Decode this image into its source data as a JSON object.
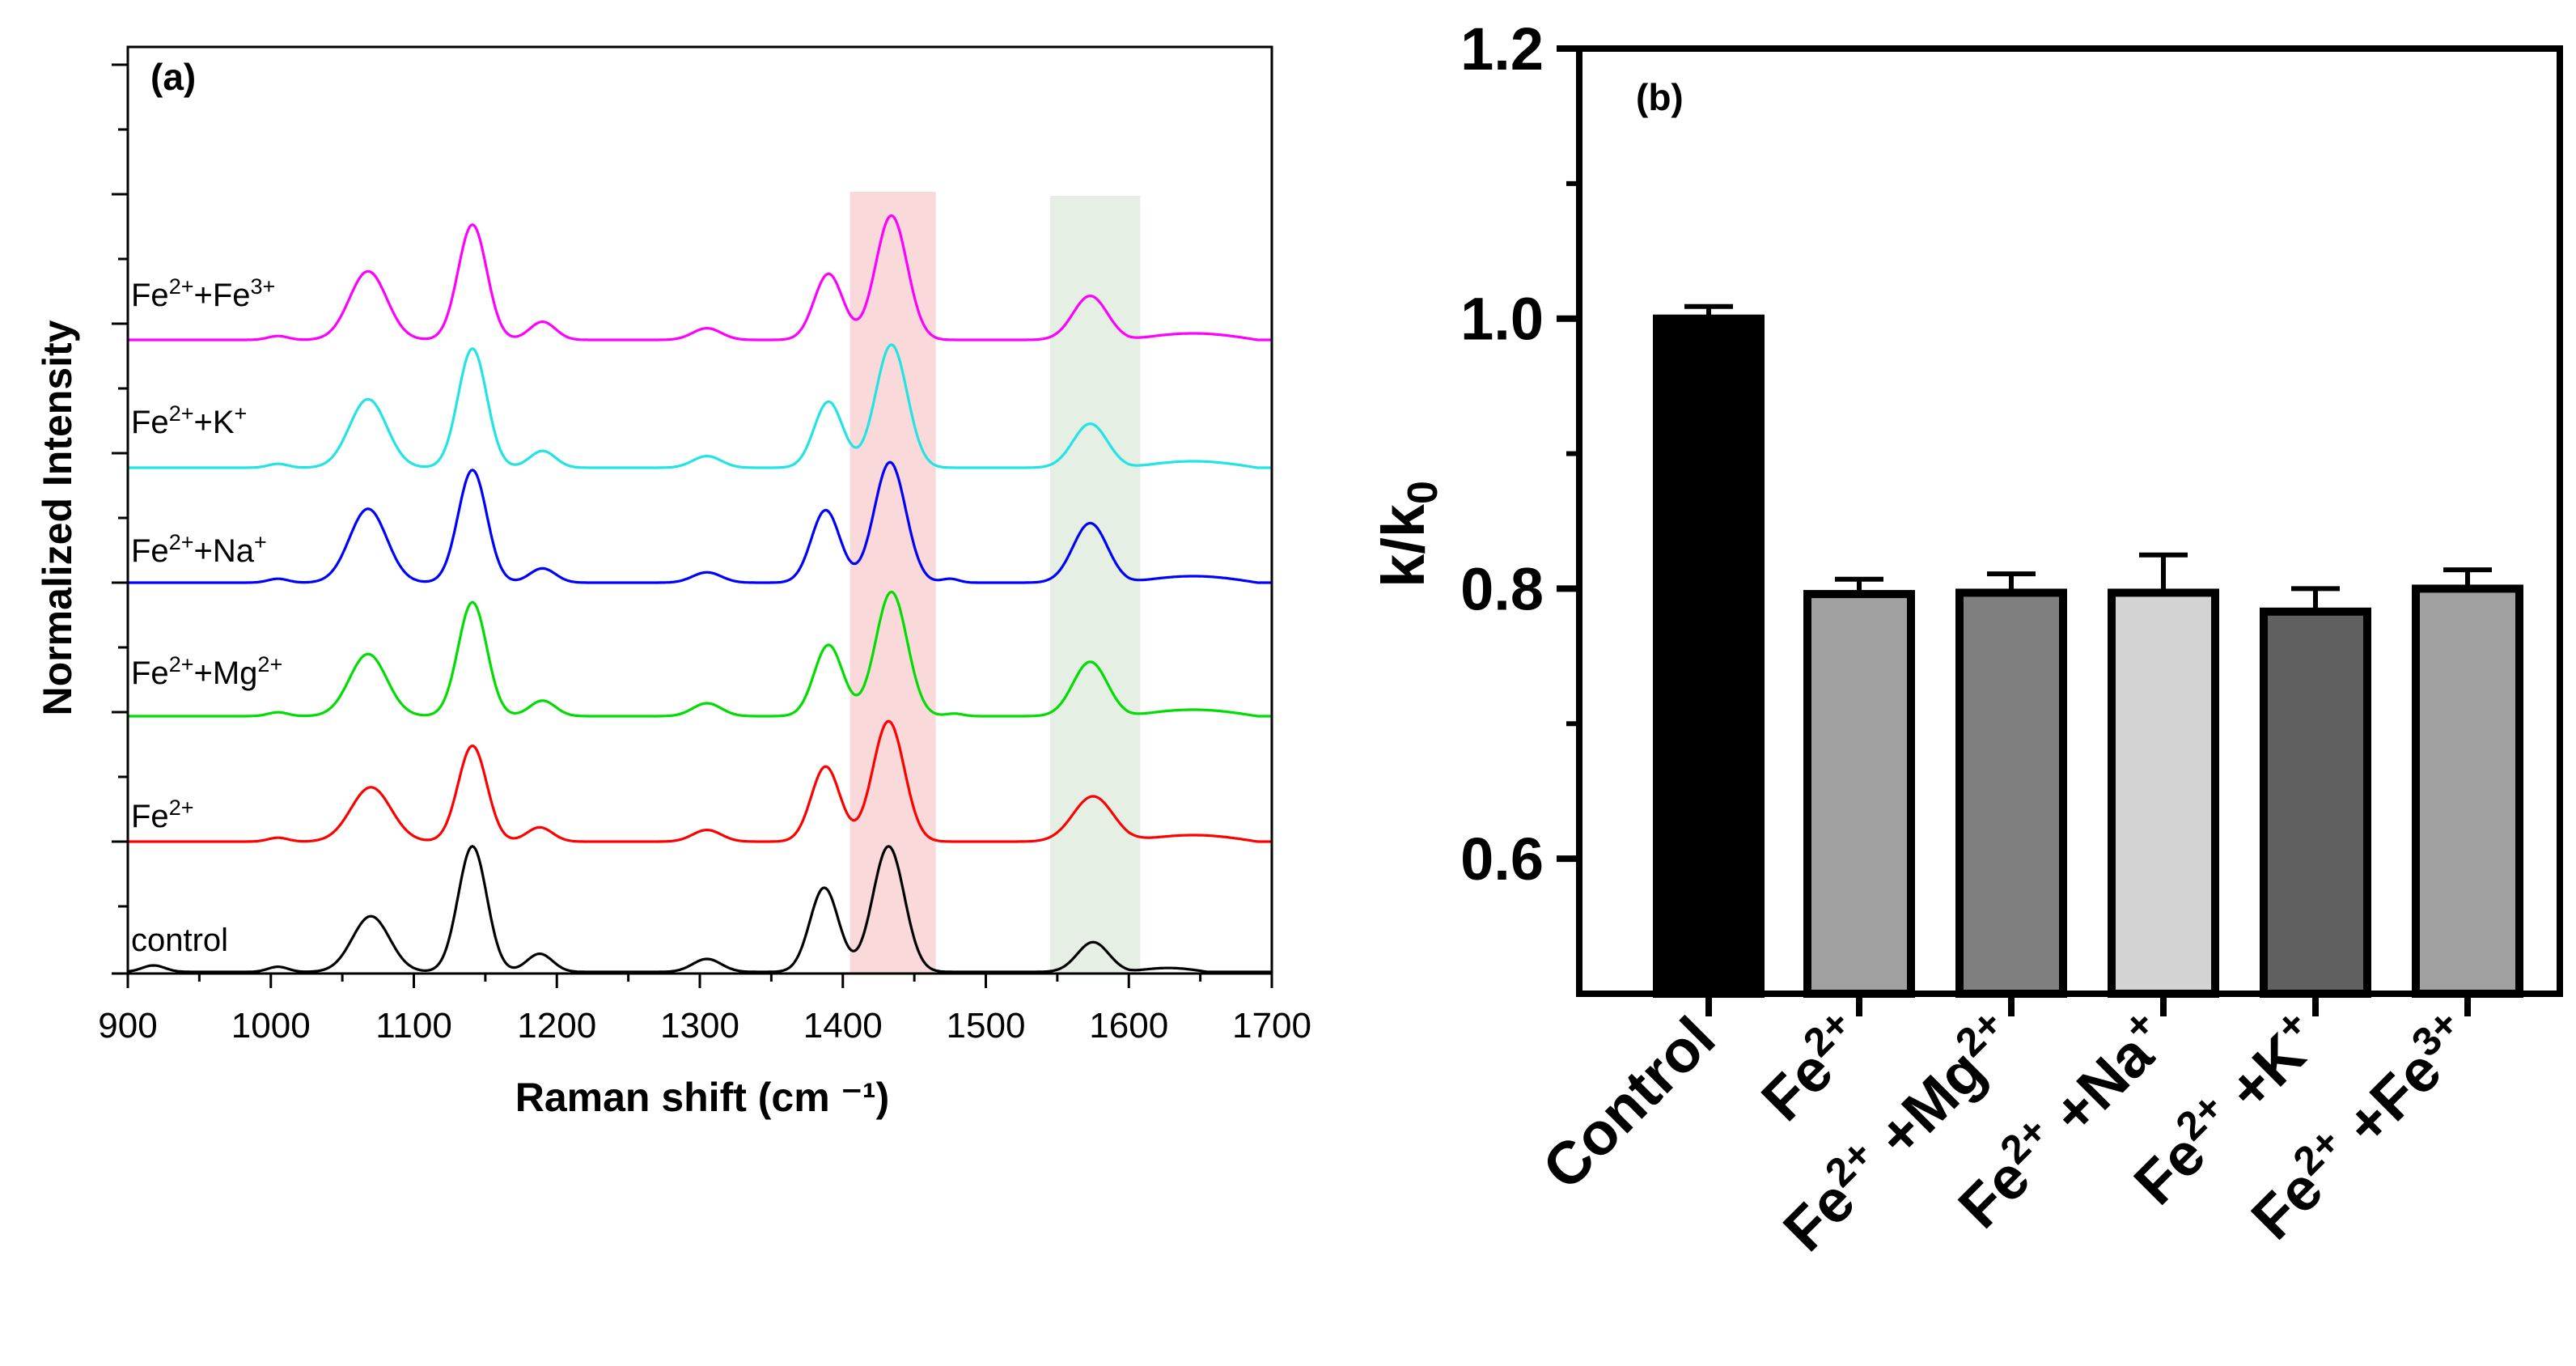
{
  "chart_data": [
    {
      "type": "line",
      "panel_label": "(a)",
      "xlabel": "Raman shift (cm ⁻¹)",
      "ylabel": "Normalized Intensity",
      "xlim": [
        900,
        1700
      ],
      "x_ticks": [
        "900",
        "1000",
        "1100",
        "1200",
        "1300",
        "1400",
        "1500",
        "1600",
        "1700"
      ],
      "highlight_bands": [
        {
          "range": [
            1405,
            1465
          ],
          "color": "#f7cccc"
        },
        {
          "range": [
            1545,
            1608
          ],
          "color": "#dceadb"
        }
      ],
      "series": [
        {
          "name": "control",
          "color": "#000000",
          "peaks": [
            [
              918,
              0.05,
              8
            ],
            [
              1005,
              0.04,
              7
            ],
            [
              1070,
              0.43,
              13
            ],
            [
              1141,
              0.97,
              10
            ],
            [
              1188,
              0.14,
              9
            ],
            [
              1305,
              0.1,
              10
            ],
            [
              1387,
              0.65,
              10
            ],
            [
              1432,
              0.97,
              11
            ],
            [
              1575,
              0.23,
              11
            ]
          ],
          "tail": [
            1600,
            1655,
            0.03
          ]
        },
        {
          "name": "Fe2+",
          "color": "#ff0000",
          "peaks": [
            [
              1005,
              0.03,
              7
            ],
            [
              1070,
              0.42,
              14
            ],
            [
              1141,
              0.74,
              10
            ],
            [
              1188,
              0.11,
              9
            ],
            [
              1305,
              0.09,
              10
            ],
            [
              1388,
              0.58,
              10
            ],
            [
              1432,
              0.93,
              11
            ],
            [
              1575,
              0.35,
              14
            ]
          ],
          "tail": [
            1600,
            1690,
            0.05
          ]
        },
        {
          "name": "Fe2+ + Mg2+",
          "color": "#00dd00",
          "peaks": [
            [
              1005,
              0.03,
              7
            ],
            [
              1068,
              0.48,
              13
            ],
            [
              1141,
              0.88,
              10
            ],
            [
              1190,
              0.12,
              9
            ],
            [
              1305,
              0.1,
              10
            ],
            [
              1390,
              0.55,
              10
            ],
            [
              1434,
              0.96,
              11
            ],
            [
              1478,
              0.02,
              6
            ],
            [
              1573,
              0.42,
              12
            ]
          ],
          "tail": [
            1600,
            1690,
            0.05
          ]
        },
        {
          "name": "Fe2+ + Na+",
          "color": "#0000ff",
          "peaks": [
            [
              1005,
              0.03,
              7
            ],
            [
              1068,
              0.57,
              13
            ],
            [
              1141,
              0.87,
              10
            ],
            [
              1190,
              0.11,
              9
            ],
            [
              1305,
              0.08,
              10
            ],
            [
              1388,
              0.56,
              10
            ],
            [
              1433,
              0.93,
              11
            ],
            [
              1475,
              0.03,
              6
            ],
            [
              1573,
              0.46,
              12
            ]
          ],
          "tail": [
            1600,
            1690,
            0.05
          ]
        },
        {
          "name": "Fe2+ + K+",
          "color": "#22e4e4",
          "peaks": [
            [
              1005,
              0.03,
              7
            ],
            [
              1068,
              0.53,
              13
            ],
            [
              1141,
              0.92,
              10
            ],
            [
              1190,
              0.13,
              9
            ],
            [
              1305,
              0.09,
              10
            ],
            [
              1390,
              0.51,
              10
            ],
            [
              1434,
              0.95,
              11
            ],
            [
              1573,
              0.34,
              12
            ]
          ],
          "tail": [
            1600,
            1690,
            0.05
          ]
        },
        {
          "name": "Fe2+ + Fe3+",
          "color": "#ff00ff",
          "peaks": [
            [
              1005,
              0.03,
              7
            ],
            [
              1068,
              0.53,
              13
            ],
            [
              1141,
              0.89,
              10
            ],
            [
              1190,
              0.14,
              9
            ],
            [
              1305,
              0.09,
              10
            ],
            [
              1390,
              0.51,
              10
            ],
            [
              1434,
              0.96,
              11
            ],
            [
              1573,
              0.34,
              12
            ]
          ],
          "tail": [
            1600,
            1690,
            0.05
          ]
        }
      ],
      "trace_labels": [
        {
          "base": "control",
          "sup": ""
        },
        {
          "base": "Fe",
          "sup": "2+"
        },
        {
          "base": "Fe",
          "sup": "2+",
          "base2": "+Mg",
          "sup2": "2+"
        },
        {
          "base": "Fe",
          "sup": "2+",
          "base2": "+Na",
          "sup2": "+"
        },
        {
          "base": "Fe",
          "sup": "2+",
          "base2": "+K",
          "sup2": "+"
        },
        {
          "base": "Fe",
          "sup": "2+",
          "base2": "+Fe",
          "sup2": "3+"
        }
      ]
    },
    {
      "type": "bar",
      "panel_label": "(b)",
      "ylabel": "k/k",
      "ylabel_sub": "0",
      "ylim": [
        0.5,
        1.2
      ],
      "y_ticks": [
        "0.6",
        "0.8",
        "1.0",
        "1.2"
      ],
      "categories": [
        {
          "base": "Control",
          "sup": ""
        },
        {
          "base": "Fe",
          "sup": "2+"
        },
        {
          "base": "Fe",
          "sup": "2+",
          "base2": " +Mg",
          "sup2": "2+"
        },
        {
          "base": "Fe",
          "sup": "2+",
          "base2": " +Na",
          "sup2": "+"
        },
        {
          "base": "Fe",
          "sup": "2+",
          "base2": " +K",
          "sup2": "+"
        },
        {
          "base": "Fe",
          "sup": "2+",
          "base2": " +Fe",
          "sup2": "3+"
        }
      ],
      "values": [
        1.0,
        0.796,
        0.797,
        0.797,
        0.783,
        0.8
      ],
      "errors": [
        0.009,
        0.011,
        0.014,
        0.028,
        0.017,
        0.014
      ],
      "bar_colors": [
        "#000000",
        "#a0a0a0",
        "#7f7f7f",
        "#d3d3d3",
        "#606060",
        "#a0a0a0"
      ]
    }
  ]
}
